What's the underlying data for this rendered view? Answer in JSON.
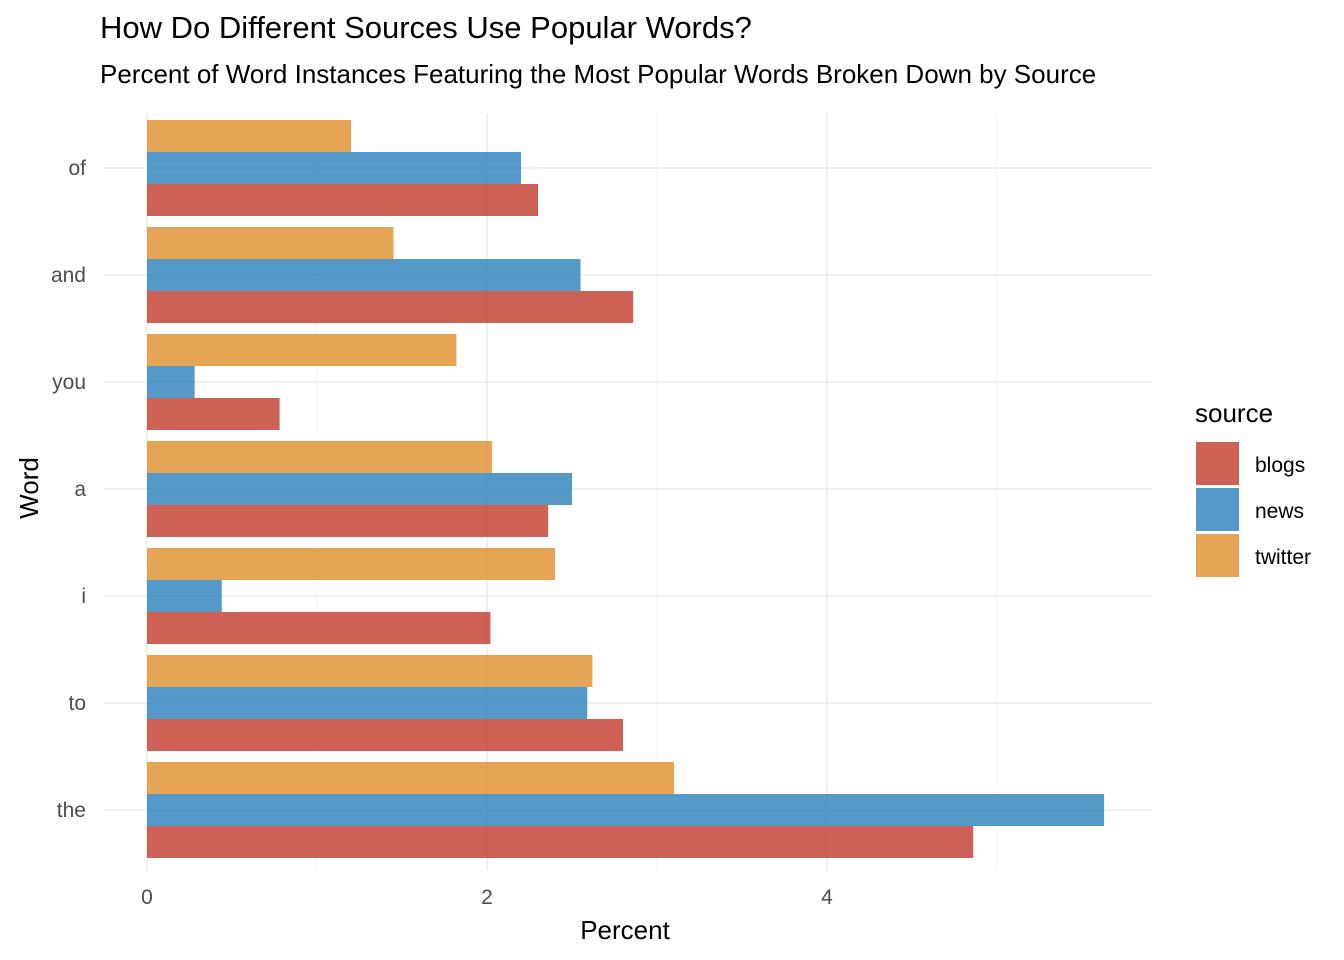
{
  "chart_data": {
    "type": "bar",
    "orientation": "horizontal",
    "title": "How Do Different Sources Use Popular Words?",
    "subtitle": "Percent of Word Instances Featuring the Most Popular Words Broken Down by Source",
    "xlabel": "Percent",
    "ylabel": "Word",
    "xlim": [
      0,
      5.9
    ],
    "x_ticks": [
      0,
      2,
      4
    ],
    "grid": true,
    "legend_title": "source",
    "legend_position": "right",
    "categories": [
      "of",
      "and",
      "you",
      "a",
      "i",
      "to",
      "the"
    ],
    "series": [
      {
        "name": "blogs",
        "color": "#c0392b",
        "values": [
          2.3,
          2.86,
          0.78,
          2.36,
          2.02,
          2.8,
          4.86
        ]
      },
      {
        "name": "news",
        "color": "#2980b9",
        "values": [
          2.2,
          2.55,
          0.28,
          2.5,
          0.44,
          2.59,
          5.63
        ]
      },
      {
        "name": "twitter",
        "color": "#e08e2b",
        "values": [
          1.2,
          1.45,
          1.82,
          2.03,
          2.4,
          2.62,
          3.1
        ]
      }
    ]
  }
}
